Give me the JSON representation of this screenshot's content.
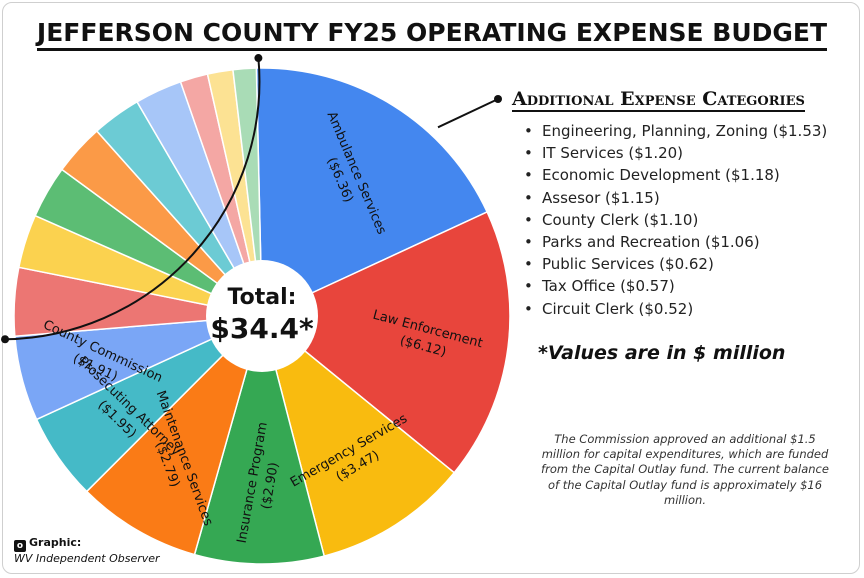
{
  "title": "JEFFERSON COUNTY FY25 OPERATING EXPENSE BUDGET",
  "chart_data": {
    "type": "pie",
    "title": "JEFFERSON COUNTY FY25 OPERATING EXPENSE BUDGET",
    "center_label": [
      "Total:",
      "$34.4*"
    ],
    "slices": [
      {
        "label": "Ambulance Services",
        "value_label": "($6.36)",
        "value": 6.36,
        "color": "#4487ef",
        "labeled": true
      },
      {
        "label": "Law Enforcement",
        "value_label": "($6.12)",
        "value": 6.12,
        "color": "#e8453c",
        "labeled": true
      },
      {
        "label": "Emergency Services",
        "value_label": "($3.47)",
        "value": 3.47,
        "color": "#f9bb0f",
        "labeled": true
      },
      {
        "label": "Insurance Program",
        "value_label": "($2.90)",
        "value": 2.9,
        "color": "#35a853",
        "labeled": true
      },
      {
        "label": "Maintenance Services",
        "value_label": "($2.79)",
        "value": 2.79,
        "color": "#fa7b16",
        "labeled": true
      },
      {
        "label": "Prosecuting Attorney",
        "value_label": "($1.95)",
        "value": 1.95,
        "color": "#45bac7",
        "labeled": true
      },
      {
        "label": "County Commission",
        "value_label": "($1.91)",
        "value": 1.91,
        "color": "#7aa6f6",
        "labeled": true
      },
      {
        "label": "Engineering, Planning, Zoning",
        "value": 1.53,
        "color": "#ec7673",
        "labeled": false
      },
      {
        "label": "IT Services",
        "value": 1.2,
        "color": "#fbd24f",
        "labeled": false
      },
      {
        "label": "Economic Development",
        "value": 1.18,
        "color": "#5cbd74",
        "labeled": false
      },
      {
        "label": "Assesor",
        "value": 1.15,
        "color": "#fb9a47",
        "labeled": false
      },
      {
        "label": "County Clerk",
        "value": 1.1,
        "color": "#6ccbd4",
        "labeled": false
      },
      {
        "label": "Parks and Recreation",
        "value": 1.06,
        "color": "#a7c6f8",
        "labeled": false
      },
      {
        "label": "Public Services",
        "value": 0.62,
        "color": "#f4a7a4",
        "labeled": false
      },
      {
        "label": "Tax Office",
        "value": 0.57,
        "color": "#fce293",
        "labeled": false
      },
      {
        "label": "Circuit Clerk",
        "value": 0.52,
        "color": "#a9dcb6",
        "labeled": false
      }
    ]
  },
  "additional": {
    "heading": "Additional Expense Categories",
    "items": [
      "Engineering, Planning, Zoning ($1.53)",
      "IT Services ($1.20)",
      "Economic Development ($1.18)",
      "Assesor ($1.15)",
      "County Clerk ($1.10)",
      "Parks and Recreation ($1.06)",
      "Public Services ($0.62)",
      "Tax Office ($0.57)",
      "Circuit Clerk ($0.52)"
    ]
  },
  "unit_note": "*Values are in $ million",
  "footnote": "The Commission approved an additional $1.5 million for capital expenditures, which are funded from the Capital Outlay fund. The current balance of the Capital Outlay fund is approximately $16 million.",
  "credit": {
    "line1": "Graphic:",
    "line2": "WV Independent Observer"
  }
}
